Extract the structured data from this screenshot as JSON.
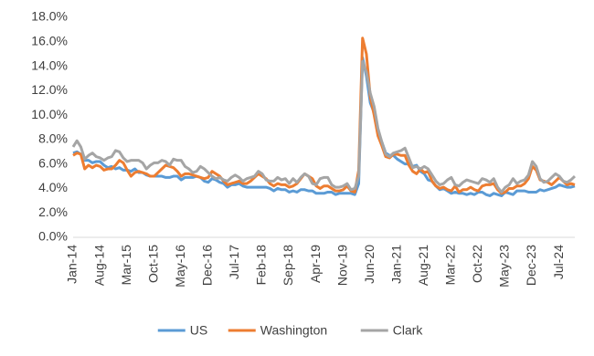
{
  "chart_data": {
    "type": "line",
    "categories": [
      "Jan-14",
      null,
      null,
      null,
      null,
      null,
      null,
      "Aug-14",
      null,
      null,
      null,
      null,
      null,
      null,
      "Mar-15",
      null,
      null,
      null,
      null,
      null,
      null,
      "Oct-15",
      null,
      null,
      null,
      null,
      null,
      null,
      "May-16",
      null,
      null,
      null,
      null,
      null,
      null,
      "Dec-16",
      null,
      null,
      null,
      null,
      null,
      null,
      "Jul-17",
      null,
      null,
      null,
      null,
      null,
      null,
      "Feb-18",
      null,
      null,
      null,
      null,
      null,
      null,
      "Sep-18",
      null,
      null,
      null,
      null,
      null,
      null,
      "Apr-19",
      null,
      null,
      null,
      null,
      null,
      null,
      "Nov-19",
      null,
      null,
      null,
      null,
      null,
      null,
      "Jun-20",
      null,
      null,
      null,
      null,
      null,
      null,
      "Jan-21",
      null,
      null,
      null,
      null,
      null,
      null,
      "Aug-21",
      null,
      null,
      null,
      null,
      null,
      null,
      "Mar-22",
      null,
      null,
      null,
      null,
      null,
      null,
      "Oct-22",
      null,
      null,
      null,
      null,
      null,
      null,
      "May-23",
      null,
      null,
      null,
      null,
      null,
      null,
      "Dec-23",
      null,
      null,
      null,
      null,
      null,
      null,
      "Jul-24",
      null,
      null,
      null,
      null
    ],
    "series": [
      {
        "name": "US",
        "color": "#5b9bd5",
        "values": [
          6.9,
          7.0,
          6.8,
          6.3,
          6.3,
          6.1,
          6.2,
          6.2,
          5.9,
          5.7,
          5.8,
          5.6,
          5.7,
          5.5,
          5.5,
          5.4,
          5.6,
          5.3,
          5.3,
          5.1,
          5.0,
          5.0,
          5.0,
          5.0,
          4.9,
          4.9,
          5.0,
          5.0,
          4.7,
          4.9,
          4.9,
          4.9,
          5.0,
          4.9,
          4.6,
          4.5,
          4.8,
          4.7,
          4.5,
          4.4,
          4.1,
          4.3,
          4.3,
          4.4,
          4.2,
          4.1,
          4.1,
          4.1,
          4.1,
          4.1,
          4.1,
          4.0,
          3.8,
          4.0,
          3.9,
          3.9,
          3.7,
          3.8,
          3.7,
          3.9,
          3.9,
          3.8,
          3.8,
          3.6,
          3.6,
          3.6,
          3.7,
          3.7,
          3.5,
          3.6,
          3.6,
          3.6,
          3.6,
          3.5,
          4.4,
          14.7,
          13.2,
          11.0,
          10.2,
          8.4,
          7.8,
          6.9,
          6.7,
          6.7,
          6.4,
          6.2,
          6.0,
          6.0,
          5.8,
          5.9,
          5.4,
          5.2,
          4.7,
          4.6,
          4.2,
          3.9,
          4.0,
          3.8,
          3.6,
          3.7,
          3.6,
          3.6,
          3.5,
          3.6,
          3.5,
          3.7,
          3.7,
          3.5,
          3.4,
          3.6,
          3.5,
          3.4,
          3.7,
          3.6,
          3.5,
          3.8,
          3.8,
          3.8,
          3.7,
          3.7,
          3.7,
          3.9,
          3.8,
          3.9,
          4.0,
          4.1,
          4.3,
          4.2,
          4.1,
          4.1,
          4.2
        ]
      },
      {
        "name": "Washington",
        "color": "#ed7d31",
        "values": [
          6.7,
          6.9,
          6.8,
          5.6,
          5.9,
          5.7,
          5.9,
          5.8,
          5.5,
          5.6,
          5.6,
          5.9,
          6.3,
          6.1,
          5.5,
          5.0,
          5.3,
          5.4,
          5.3,
          5.2,
          5.0,
          5.0,
          5.3,
          5.6,
          5.9,
          5.8,
          5.7,
          5.4,
          5.0,
          5.2,
          5.2,
          5.1,
          5.0,
          4.9,
          4.8,
          4.9,
          5.4,
          5.2,
          5.0,
          4.6,
          4.3,
          4.4,
          4.5,
          4.6,
          4.4,
          4.4,
          4.6,
          4.9,
          5.2,
          5.0,
          4.8,
          4.4,
          4.2,
          4.4,
          4.3,
          4.3,
          4.1,
          4.2,
          4.4,
          4.8,
          5.2,
          5.0,
          4.8,
          4.2,
          4.0,
          4.2,
          4.2,
          4.0,
          3.8,
          3.8,
          3.9,
          4.2,
          3.8,
          3.7,
          5.5,
          16.3,
          15.0,
          11.5,
          10.0,
          8.3,
          7.5,
          6.6,
          6.5,
          6.8,
          6.8,
          6.7,
          6.7,
          5.9,
          5.4,
          5.2,
          5.6,
          5.3,
          5.4,
          4.6,
          4.2,
          4.0,
          4.1,
          3.9,
          3.8,
          4.2,
          3.7,
          3.9,
          3.9,
          4.1,
          3.9,
          3.8,
          4.2,
          4.3,
          4.3,
          4.4,
          3.9,
          3.6,
          3.7,
          4.0,
          4.0,
          4.2,
          4.2,
          4.4,
          4.8,
          5.8,
          5.5,
          4.7,
          4.6,
          4.5,
          4.3,
          4.6,
          4.9,
          4.6,
          4.3,
          4.4,
          4.3
        ]
      },
      {
        "name": "Clark",
        "color": "#a5a5a5",
        "values": [
          7.4,
          7.9,
          7.4,
          6.4,
          6.7,
          6.9,
          6.6,
          6.5,
          6.3,
          6.5,
          6.6,
          7.1,
          7.0,
          6.5,
          6.2,
          6.3,
          6.3,
          6.3,
          6.1,
          5.6,
          5.9,
          6.1,
          6.1,
          6.3,
          6.2,
          5.9,
          6.4,
          6.3,
          6.3,
          5.8,
          5.6,
          5.3,
          5.4,
          5.8,
          5.6,
          5.3,
          5.0,
          4.8,
          4.9,
          4.7,
          4.6,
          4.9,
          5.1,
          4.9,
          4.6,
          4.8,
          4.9,
          5.0,
          5.4,
          5.2,
          4.7,
          4.6,
          4.6,
          4.9,
          4.7,
          4.8,
          4.4,
          4.8,
          4.5,
          4.9,
          5.2,
          5.0,
          4.4,
          4.3,
          4.8,
          4.9,
          4.9,
          4.3,
          4.1,
          4.1,
          4.2,
          4.4,
          3.9,
          4.0,
          5.0,
          14.4,
          13.5,
          11.8,
          10.7,
          8.9,
          7.8,
          6.8,
          6.6,
          6.9,
          7.0,
          7.1,
          7.3,
          6.5,
          5.7,
          5.8,
          5.6,
          5.8,
          5.6,
          5.1,
          4.6,
          4.3,
          4.4,
          4.7,
          4.9,
          4.3,
          4.2,
          4.5,
          4.7,
          4.6,
          4.5,
          4.4,
          4.8,
          4.7,
          4.5,
          4.8,
          4.1,
          3.7,
          4.1,
          4.3,
          4.8,
          4.4,
          4.6,
          4.7,
          5.1,
          6.2,
          5.8,
          4.8,
          4.5,
          4.6,
          4.9,
          5.2,
          5.0,
          4.6,
          4.5,
          4.7,
          5.0
        ]
      }
    ],
    "ylim": [
      0,
      18
    ],
    "yticks": [
      {
        "value": 0,
        "label": "0.0%"
      },
      {
        "value": 2,
        "label": "2.0%"
      },
      {
        "value": 4,
        "label": "4.0%"
      },
      {
        "value": 6,
        "label": "6.0%"
      },
      {
        "value": 8,
        "label": "8.0%"
      },
      {
        "value": 10,
        "label": "10.0%"
      },
      {
        "value": 12,
        "label": "12.0%"
      },
      {
        "value": 14,
        "label": "14.0%"
      },
      {
        "value": 16,
        "label": "16.0%"
      },
      {
        "value": 18,
        "label": "18.0%"
      }
    ],
    "grid": false
  }
}
